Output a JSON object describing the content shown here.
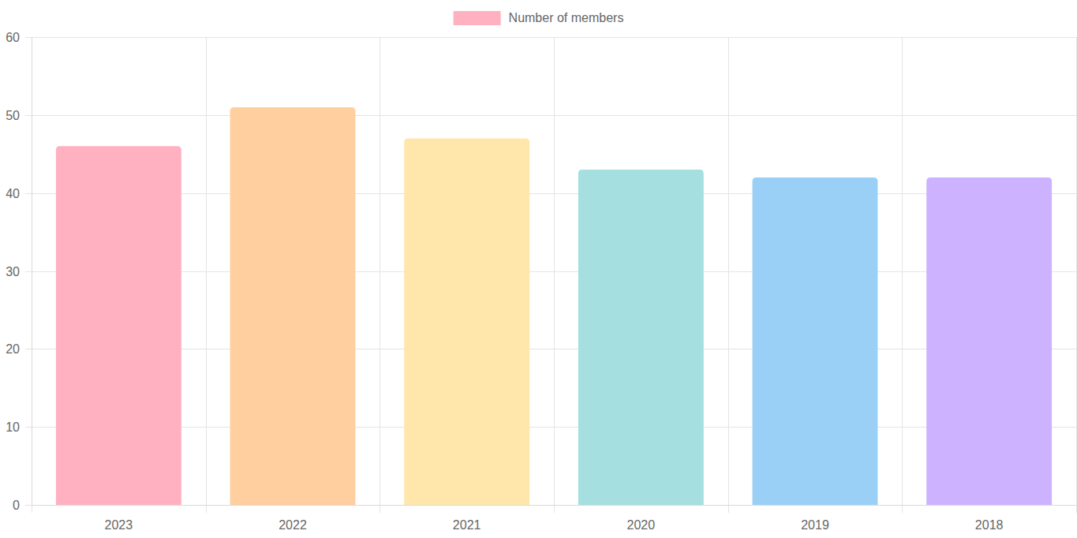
{
  "chart_data": {
    "type": "bar",
    "categories": [
      "2023",
      "2022",
      "2021",
      "2020",
      "2019",
      "2018"
    ],
    "series": [
      {
        "name": "Number of members",
        "colors": [
          "#ffb1c1",
          "#ffcf9f",
          "#ffe6aa",
          "#a5dfdf",
          "#9ad0f5",
          "#ccb2ff"
        ],
        "values": [
          46,
          51,
          47,
          43,
          42,
          42
        ]
      }
    ],
    "ylim": [
      0,
      60
    ],
    "yticks": [
      0,
      10,
      20,
      30,
      40,
      50,
      60
    ],
    "grid": true,
    "legend": "top"
  }
}
